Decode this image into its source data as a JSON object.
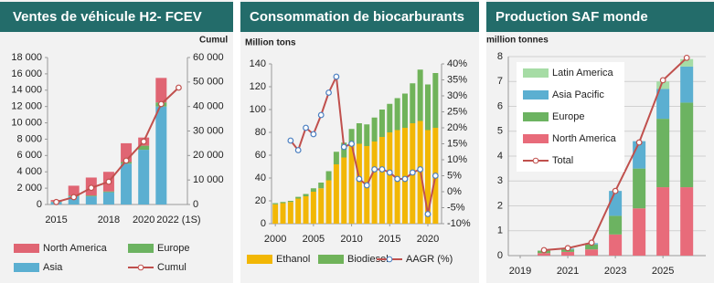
{
  "chart_data": [
    {
      "type": "bar",
      "stacked": true,
      "stack_order": "reverse",
      "title": "Ventes de véhicule H2- FCEV",
      "categories": [
        "2015",
        null,
        null,
        "2018",
        null,
        "2020",
        null,
        "2022 (1S)"
      ],
      "series": [
        {
          "name": "North America",
          "color": "#e06573",
          "values": [
            200,
            1200,
            2200,
            2400,
            2300,
            1000,
            3000,
            null
          ]
        },
        {
          "name": "Europe",
          "color": "#6cb361",
          "values": [
            50,
            100,
            100,
            100,
            200,
            500,
            500,
            null
          ]
        },
        {
          "name": "Asia",
          "color": "#5bafd1",
          "values": [
            300,
            1000,
            1000,
            1500,
            5000,
            6700,
            12000,
            null
          ]
        },
        {
          "name": "Cumul",
          "type": "line",
          "axis": "y2",
          "color": "#c0504d",
          "values": [
            1000,
            3000,
            6800,
            9300,
            17900,
            25700,
            41000,
            47700
          ]
        }
      ],
      "ylim": [
        0,
        18000
      ],
      "yticks": [
        0,
        {
          "value": 2000,
          "label": "2 000"
        },
        {
          "value": 4000,
          "label": "4 000"
        },
        {
          "value": 6000,
          "label": "6 000"
        },
        {
          "value": 8000,
          "label": "8 000"
        },
        {
          "value": 10000,
          "label": "10 000"
        },
        {
          "value": 12000,
          "label": "12 000"
        },
        {
          "value": 14000,
          "label": "14 000"
        },
        {
          "value": 16000,
          "label": "16 000"
        },
        {
          "value": 18000,
          "label": "18 000"
        }
      ],
      "y2label": "Cumul",
      "y2lim": [
        0,
        60000
      ],
      "y2ticks": [
        0,
        {
          "value": 10000,
          "label": "10 000"
        },
        {
          "value": 20000,
          "label": "20 000"
        },
        {
          "value": 30000,
          "label": "30 000"
        },
        {
          "value": 40000,
          "label": "40 000"
        },
        {
          "value": 50000,
          "label": "50 000"
        },
        {
          "value": 60000,
          "label": "60 000"
        }
      ],
      "grid": false,
      "legend": "bottom"
    },
    {
      "type": "bar",
      "stacked": true,
      "title": "Consommation de biocarburants",
      "x": [
        2000,
        2001,
        2002,
        2003,
        2004,
        2005,
        2006,
        2007,
        2008,
        2009,
        2010,
        2011,
        2012,
        2013,
        2014,
        2015,
        2016,
        2017,
        2018,
        2019,
        2020,
        2021
      ],
      "series": [
        {
          "name": "Ethanol",
          "color": "#f2b705",
          "values": [
            17,
            18,
            19,
            22,
            24,
            28,
            31,
            38,
            52,
            58,
            68,
            70,
            68,
            72,
            76,
            80,
            82,
            84,
            88,
            90,
            82,
            84
          ]
        },
        {
          "name": "Biodiesel",
          "color": "#70b35a",
          "values": [
            1,
            1,
            1,
            1.5,
            2,
            3,
            5,
            8,
            11,
            13,
            15,
            18,
            19,
            21,
            24,
            25,
            28,
            30,
            35,
            45,
            40,
            48
          ]
        },
        {
          "name": "AAGR (%)",
          "type": "line",
          "axis": "y2",
          "color": "#c0504d",
          "marker_color": "#4a7fc1",
          "values": [
            null,
            null,
            16,
            13,
            20,
            18,
            24,
            31,
            36,
            14,
            15,
            4,
            2,
            7,
            7,
            6,
            4,
            4,
            6,
            7,
            -7,
            5
          ]
        }
      ],
      "ylabel": "Million tons",
      "xlim": [
        1999.5,
        2021.8
      ],
      "xticks": [
        2000,
        2005,
        2010,
        2015,
        2020
      ],
      "ylim": [
        0,
        140
      ],
      "yticks": [
        0,
        20,
        40,
        60,
        80,
        100,
        120,
        140
      ],
      "y2lim": [
        -10,
        40
      ],
      "y2ticks": [
        {
          "value": -10,
          "label": "-10%"
        },
        {
          "value": -5,
          "label": "-5%"
        },
        {
          "value": 0,
          "label": "0%"
        },
        {
          "value": 5,
          "label": "5%"
        },
        {
          "value": 10,
          "label": "10%"
        },
        {
          "value": 15,
          "label": "15%"
        },
        {
          "value": 20,
          "label": "20%"
        },
        {
          "value": 25,
          "label": "25%"
        },
        {
          "value": 30,
          "label": "30%"
        },
        {
          "value": 35,
          "label": "35%"
        },
        {
          "value": 40,
          "label": "40%"
        }
      ],
      "grid": false,
      "legend": "bottom"
    },
    {
      "type": "bar",
      "stacked": true,
      "stack_order": "reverse",
      "title": "Production SAF monde",
      "x": [
        2020,
        2021,
        2022,
        2023,
        2024,
        2025,
        2026
      ],
      "series": [
        {
          "name": "Latin America",
          "color": "#a6dca5",
          "values": [
            0,
            0,
            0,
            0,
            0,
            0.3,
            0.3
          ]
        },
        {
          "name": "Asia Pacific",
          "color": "#5bafd1",
          "values": [
            0,
            0.03,
            0.05,
            1.0,
            1.1,
            1.2,
            1.45
          ]
        },
        {
          "name": "Europe",
          "color": "#6cb361",
          "values": [
            0.1,
            0.1,
            0.2,
            0.75,
            1.6,
            2.75,
            3.4
          ]
        },
        {
          "name": "North America",
          "color": "#e86b7a",
          "values": [
            0.1,
            0.15,
            0.25,
            0.85,
            1.9,
            2.75,
            2.75
          ]
        },
        {
          "name": "Total",
          "type": "line",
          "color": "#c0504d",
          "values": [
            0.22,
            0.3,
            0.52,
            2.6,
            4.55,
            7.05,
            7.95
          ]
        }
      ],
      "ylabel": "million tonnes",
      "xlim": [
        2018.5,
        2026.8
      ],
      "xticks": [
        2019,
        2021,
        2023,
        2025
      ],
      "ylim": [
        0,
        8
      ],
      "yticks": [
        0,
        1,
        2,
        3,
        4,
        5,
        6,
        7,
        8
      ],
      "grid": true,
      "legend": "upper left"
    }
  ]
}
